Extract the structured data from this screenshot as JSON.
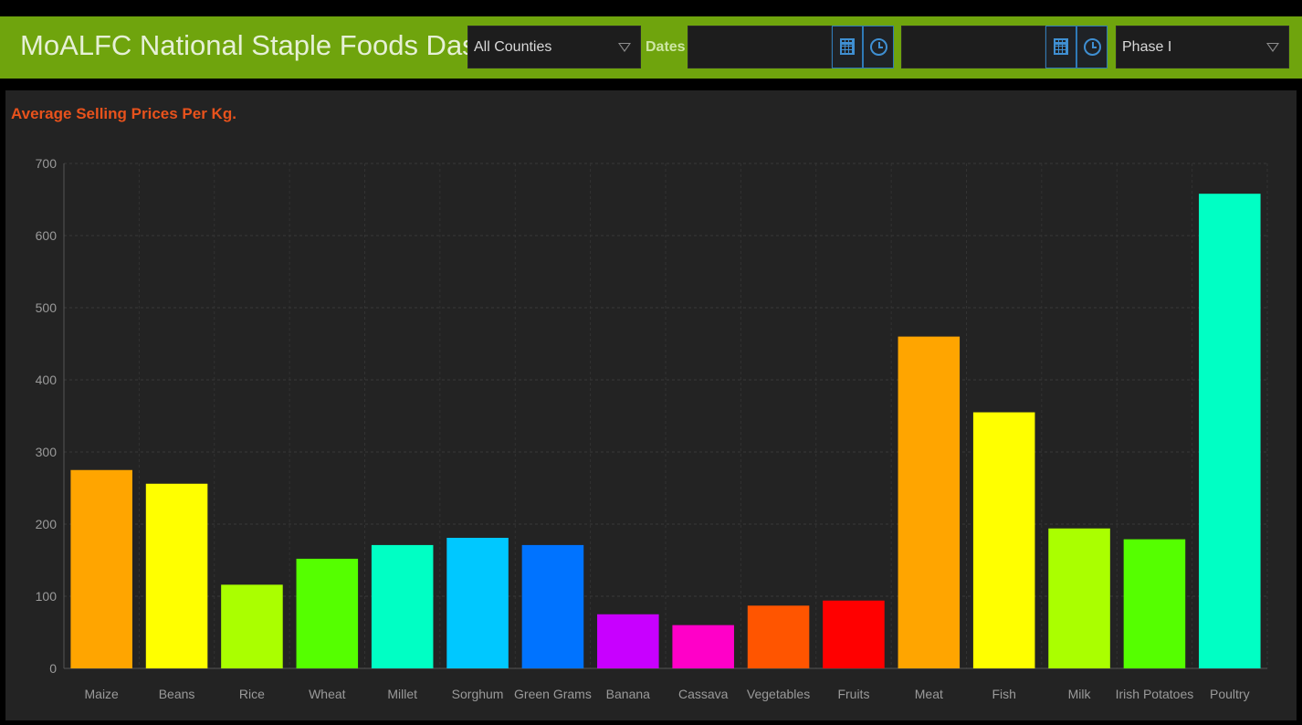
{
  "header": {
    "title": "MoALFC National Staple Foods Das...",
    "county_select": "All Counties",
    "dates_label": "Dates",
    "date_from_value": "",
    "date_to_value": "",
    "phase_select": "Phase I"
  },
  "icons": {
    "calendar": "calendar-icon",
    "clock": "clock-icon",
    "dropdown": "chevron-down-icon"
  },
  "colors": {
    "header_bg": "#6fa40d",
    "panel_bg": "#232323",
    "title": "#e8521c",
    "icon_accent": "#3f8fd2"
  },
  "chart_data": {
    "type": "bar",
    "title": "Average Selling Prices Per Kg.",
    "xlabel": "",
    "ylabel": "",
    "ylim": [
      0,
      700
    ],
    "yticks": [
      0,
      100,
      200,
      300,
      400,
      500,
      600,
      700
    ],
    "grid": true,
    "categories": [
      "Maize",
      "Beans",
      "Rice",
      "Wheat",
      "Millet",
      "Sorghum",
      "Green Grams",
      "Banana",
      "Cassava",
      "Vegetables",
      "Fruits",
      "Meat",
      "Fish",
      "Milk",
      "Irish Potatoes",
      "Poultry"
    ],
    "values": [
      275,
      256,
      116,
      152,
      171,
      181,
      171,
      75,
      60,
      87,
      94,
      460,
      355,
      194,
      179,
      658
    ],
    "colors": [
      "#ffa500",
      "#ffff00",
      "#aaff00",
      "#55ff00",
      "#00ffc4",
      "#00c8ff",
      "#0073ff",
      "#c800ff",
      "#ff00c8",
      "#ff5500",
      "#ff0000",
      "#ffa500",
      "#ffff00",
      "#aaff00",
      "#55ff00",
      "#00ffc4"
    ]
  }
}
